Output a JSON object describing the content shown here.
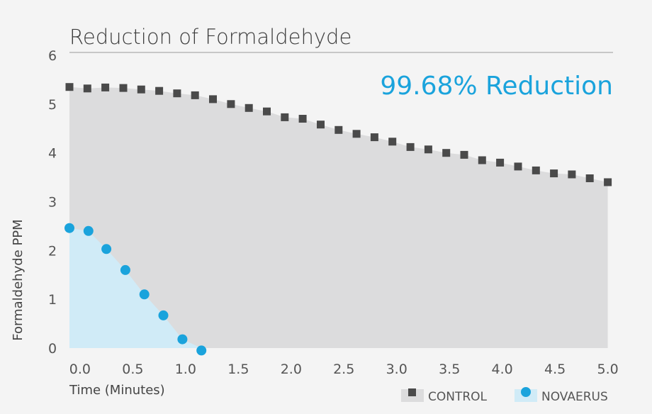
{
  "chart_data": {
    "type": "scatter",
    "title": "Reduction of Formaldehyde",
    "annotation": "99.68% Reduction",
    "xlabel": "Time (Minutes)",
    "ylabel": "Formaldehyde PPM",
    "xlim": [
      -0.1,
      5.05
    ],
    "ylim": [
      0,
      6
    ],
    "x_ticks": [
      "0.0",
      "0.5",
      "1.0",
      "1.5",
      "2.0",
      "2.5",
      "3.0",
      "3.5",
      "4.0",
      "4.5",
      "5.0"
    ],
    "y_ticks": [
      "0",
      "1",
      "2",
      "3",
      "4",
      "5",
      "6"
    ],
    "grid": false,
    "legend_position": "bottom-right",
    "series": [
      {
        "name": "CONTROL",
        "marker": "square",
        "color": "#4a4a4a",
        "fill": "#dcdcdd",
        "x": [
          -0.1,
          0.07,
          0.24,
          0.41,
          0.58,
          0.75,
          0.92,
          1.09,
          1.26,
          1.43,
          1.6,
          1.77,
          1.94,
          2.11,
          2.28,
          2.45,
          2.62,
          2.79,
          2.96,
          3.13,
          3.3,
          3.47,
          3.64,
          3.81,
          3.98,
          4.15,
          4.32,
          4.49,
          4.66,
          4.83,
          5.0
        ],
        "y": [
          5.35,
          5.32,
          5.34,
          5.33,
          5.3,
          5.27,
          5.22,
          5.18,
          5.1,
          5.0,
          4.92,
          4.85,
          4.73,
          4.7,
          4.58,
          4.47,
          4.39,
          4.32,
          4.23,
          4.12,
          4.07,
          4.0,
          3.96,
          3.85,
          3.8,
          3.72,
          3.64,
          3.58,
          3.56,
          3.48,
          3.4
        ]
      },
      {
        "name": "NOVAERUS",
        "marker": "circle",
        "color": "#1aa3dc",
        "fill": "#d0ebf7",
        "x": [
          -0.1,
          0.08,
          0.25,
          0.43,
          0.61,
          0.79,
          0.97,
          1.15
        ],
        "y": [
          2.46,
          2.4,
          2.03,
          1.6,
          1.1,
          0.67,
          0.18,
          -0.05
        ]
      }
    ]
  },
  "colors": {
    "background": "#f4f4f4",
    "control_marker": "#4a4a4a",
    "control_fill": "#dcdcdd",
    "novaerus_marker": "#1aa3dc",
    "novaerus_fill": "#d0ebf7",
    "annotation": "#1aa3dc"
  }
}
